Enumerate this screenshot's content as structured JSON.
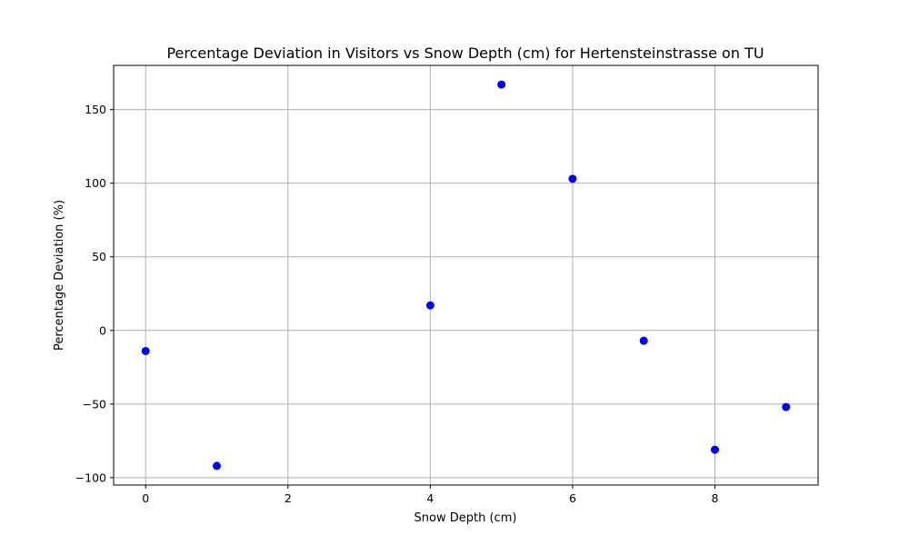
{
  "chart_data": {
    "type": "scatter",
    "title": "Percentage Deviation in Visitors vs Snow Depth (cm) for Hertensteinstrasse on TU",
    "xlabel": "Snow Depth (cm)",
    "ylabel": "Percentage Deviation (%)",
    "xlim": [
      -0.45,
      9.45
    ],
    "ylim": [
      -105,
      180
    ],
    "xticks": [
      0,
      2,
      4,
      6,
      8
    ],
    "xtick_labels": [
      "0",
      "2",
      "4",
      "6",
      "8"
    ],
    "yticks": [
      -100,
      -50,
      0,
      50,
      100,
      150
    ],
    "ytick_labels": [
      "−100",
      "−50",
      "0",
      "50",
      "100",
      "150"
    ],
    "grid": true,
    "marker_color": "#0000ee",
    "points": [
      {
        "x": 0,
        "y": -14
      },
      {
        "x": 1,
        "y": -92
      },
      {
        "x": 4,
        "y": 17
      },
      {
        "x": 5,
        "y": 167
      },
      {
        "x": 6,
        "y": 103
      },
      {
        "x": 7,
        "y": -7
      },
      {
        "x": 8,
        "y": -81
      },
      {
        "x": 9,
        "y": -52
      }
    ]
  }
}
